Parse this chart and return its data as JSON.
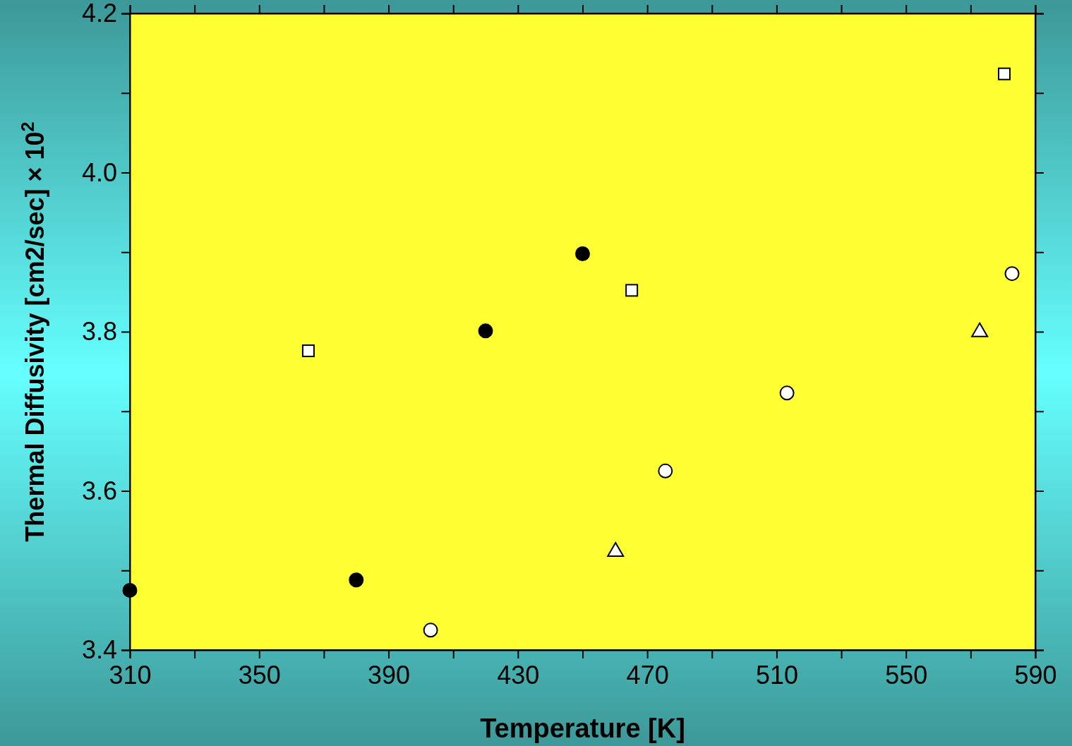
{
  "chart_data": {
    "type": "scatter",
    "xlabel": "Temperature [K]",
    "ylabel": "Thermal Diffusivity [cm2/sec] × 10$^{2}$",
    "xlim": [
      310,
      590
    ],
    "ylim": [
      3.4,
      4.2
    ],
    "xticks": [
      310,
      {
        "value": 330,
        "label": null
      },
      350,
      {
        "value": 370,
        "label": null
      },
      390,
      {
        "value": 410,
        "label": null
      },
      430,
      {
        "value": 450,
        "label": null
      },
      470,
      {
        "value": 490,
        "label": null
      },
      510,
      {
        "value": 530,
        "label": null
      },
      550,
      {
        "value": 570,
        "label": null
      },
      590
    ],
    "yticks": [
      {
        "value": 3.4,
        "label": "3.4"
      },
      {
        "value": 3.5,
        "label": null
      },
      {
        "value": 3.6,
        "label": "3.6"
      },
      {
        "value": 3.7,
        "label": null
      },
      {
        "value": 3.8,
        "label": "3.8"
      },
      {
        "value": 3.9,
        "label": null
      },
      {
        "value": 4.0,
        "label": "4.0"
      },
      {
        "value": 4.1,
        "label": null
      },
      {
        "value": 4.2,
        "label": "4.2"
      }
    ],
    "grid": false,
    "series": [
      {
        "color": "#000000",
        "marker": "circle",
        "x": [
          310,
          380,
          420,
          450
        ],
        "values": [
          3.475,
          3.488,
          3.801,
          3.898
        ]
      },
      {
        "color": "#ffffff",
        "marker": "circle",
        "x": [
          403,
          475.6,
          513.2,
          582.8
        ],
        "values": [
          3.425,
          3.625,
          3.723,
          3.873
        ]
      },
      {
        "color": "#ffffff",
        "marker": "square",
        "x": [
          365.2,
          465.2,
          580.4
        ],
        "values": [
          3.776,
          3.852,
          4.124
        ]
      },
      {
        "color": "#ffffff",
        "marker": "triangle",
        "x": [
          460.2,
          572.8
        ],
        "values": [
          3.525,
          3.801
        ]
      }
    ]
  }
}
